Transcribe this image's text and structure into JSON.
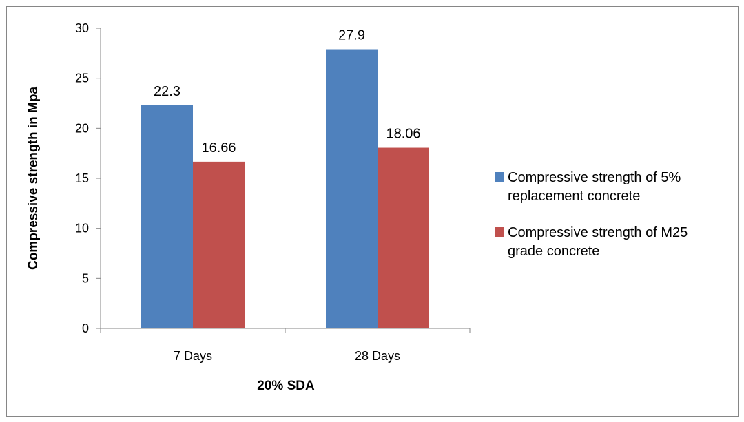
{
  "chart_data": {
    "type": "bar",
    "title": "",
    "xlabel": "20% SDA",
    "ylabel": "Compressive strength in Mpa",
    "categories": [
      "7 Days",
      "28 Days"
    ],
    "ylim": [
      0,
      30
    ],
    "yticks": [
      0,
      5,
      10,
      15,
      20,
      25,
      30
    ],
    "grid": false,
    "legend_position": "right",
    "series": [
      {
        "name": "Compressive strength of 5% replacement concrete",
        "name_lines": [
          "Compressive strength of 5%",
          "replacement concrete"
        ],
        "color": "#4f81bd",
        "values": [
          22.3,
          27.9
        ],
        "labels": [
          "22.3",
          "27.9"
        ]
      },
      {
        "name": "Compressive strength of M25 grade concrete",
        "name_lines": [
          "Compressive strength of M25",
          "grade concrete"
        ],
        "color": "#c0504d",
        "values": [
          16.66,
          18.06
        ],
        "labels": [
          "16.66",
          "18.06"
        ]
      }
    ]
  }
}
